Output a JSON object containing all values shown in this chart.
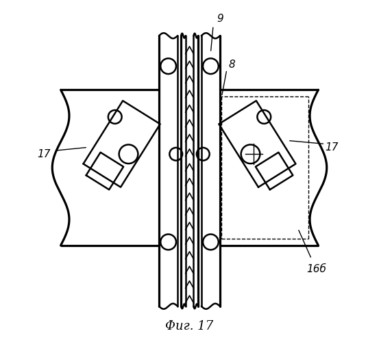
{
  "title": "Фиг. 17",
  "label_9": "9",
  "label_8": "8",
  "label_17a": "17",
  "label_17b": "17",
  "label_16": "16б",
  "bg_color": "#ffffff",
  "fig_width": 5.53,
  "fig_height": 5.0,
  "lw": 1.8,
  "tlw": 1.0
}
